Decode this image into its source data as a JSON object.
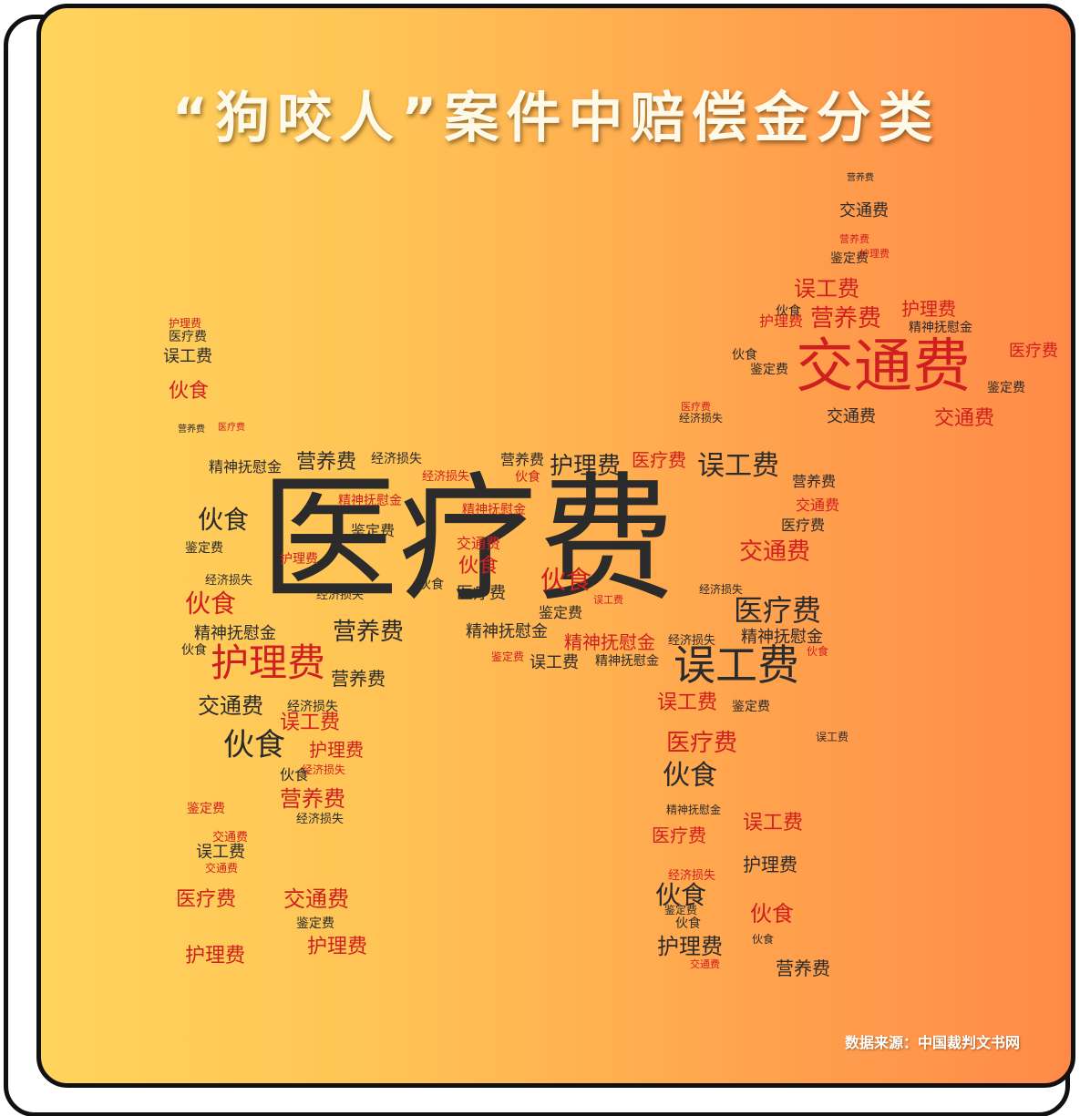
{
  "title": "“狗咬人”案件中赔偿金分类",
  "source": "数据来源：中国裁判文书网",
  "colors": {
    "red": "#d01f1f",
    "dark": "#2b2b2b",
    "background_left": "#ffd45c",
    "background_right": "#ff8a48",
    "title": "#fff9e8"
  },
  "word_cloud": {
    "shape": "dog",
    "words": [
      {
        "text": "医疗费",
        "weight": 100,
        "color": "dark"
      },
      {
        "text": "交通费",
        "weight": 45,
        "color": "red"
      },
      {
        "text": "误工费",
        "weight": 28,
        "color": "dark"
      },
      {
        "text": "护理费",
        "weight": 27,
        "color": "red"
      },
      {
        "text": "医疗费",
        "weight": 22,
        "color": "dark"
      },
      {
        "text": "伙食",
        "weight": 22,
        "color": "dark"
      },
      {
        "text": "营养费",
        "weight": 18,
        "color": "dark"
      },
      {
        "text": "精神抚慰金",
        "weight": 13,
        "color": "red"
      },
      {
        "text": "经济损失",
        "weight": 8,
        "color": "dark"
      },
      {
        "text": "鉴定费",
        "weight": 10,
        "color": "dark"
      }
    ]
  }
}
